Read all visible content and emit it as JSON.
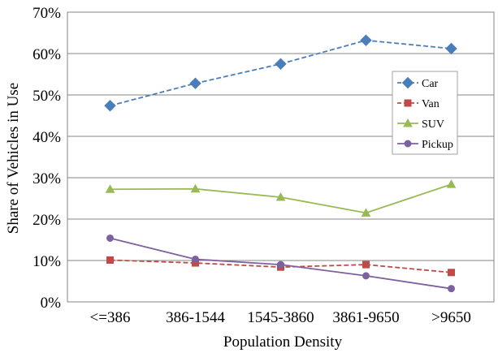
{
  "chart_data": {
    "type": "line",
    "xlabel": "Population Density",
    "ylabel": "Share of Vehicles in Use",
    "categories": [
      "<=386",
      "386-1544",
      "1545-3860",
      "3861-9650",
      ">9650"
    ],
    "ylim": [
      0,
      70
    ],
    "yticks": [
      0,
      10,
      20,
      30,
      40,
      50,
      60,
      70
    ],
    "ytick_labels": [
      "0%",
      "10%",
      "20%",
      "30%",
      "40%",
      "50%",
      "60%",
      "70%"
    ],
    "grid": true,
    "legend_position": "right",
    "series": [
      {
        "name": "Car",
        "values": [
          47.4,
          52.8,
          57.5,
          63.2,
          61.2
        ],
        "color": "#4a7ebb",
        "marker": "diamond",
        "dash": "dashed"
      },
      {
        "name": "Van",
        "values": [
          10.1,
          9.4,
          8.4,
          9.0,
          7.1
        ],
        "color": "#be4b48",
        "marker": "square",
        "dash": "dashed"
      },
      {
        "name": "SUV",
        "values": [
          27.2,
          27.3,
          25.3,
          21.5,
          28.4
        ],
        "color": "#98b954",
        "marker": "triangle",
        "dash": "solid"
      },
      {
        "name": "Pickup",
        "values": [
          15.4,
          10.3,
          9.0,
          6.3,
          3.2
        ],
        "color": "#7d60a0",
        "marker": "circle",
        "dash": "solid"
      }
    ]
  }
}
